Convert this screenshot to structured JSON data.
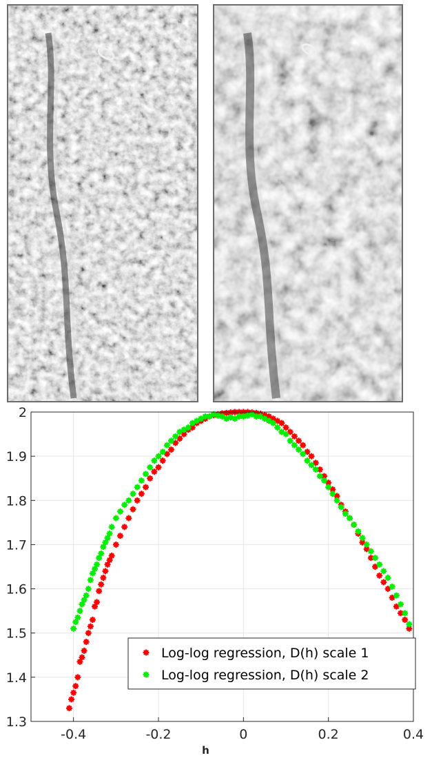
{
  "images": [
    {
      "label": "",
      "texture": "fine"
    },
    {
      "label": "",
      "texture": "coarse"
    }
  ],
  "colors": {
    "series1": "#ff0000",
    "series2": "#00ee00",
    "axis": "#262626",
    "grid": "#e6e6e6"
  },
  "chart_data": {
    "type": "scatter",
    "title": "",
    "xlabel": "h",
    "ylabel": "",
    "xlim": [
      -0.5,
      0.4
    ],
    "ylim": [
      1.3,
      2.0
    ],
    "xticks": [
      "-0.4",
      "-0.2",
      "0",
      "0.2",
      "0.4"
    ],
    "yticks": [
      "1.3",
      "1.4",
      "1.5",
      "1.6",
      "1.7",
      "1.8",
      "1.9",
      "2"
    ],
    "grid": true,
    "legend_position": "bottom-right",
    "series": [
      {
        "name": "Log-log regression, D(h) scale 1",
        "color": "#ff0000",
        "x": [
          -0.41,
          -0.405,
          -0.4,
          -0.395,
          -0.39,
          -0.385,
          -0.38,
          -0.375,
          -0.37,
          -0.365,
          -0.36,
          -0.355,
          -0.35,
          -0.345,
          -0.34,
          -0.335,
          -0.33,
          -0.325,
          -0.32,
          -0.315,
          -0.31,
          -0.3,
          -0.29,
          -0.28,
          -0.27,
          -0.26,
          -0.25,
          -0.24,
          -0.23,
          -0.22,
          -0.21,
          -0.2,
          -0.19,
          -0.18,
          -0.17,
          -0.16,
          -0.15,
          -0.14,
          -0.13,
          -0.12,
          -0.11,
          -0.1,
          -0.09,
          -0.08,
          -0.07,
          -0.06,
          -0.05,
          -0.04,
          -0.03,
          -0.02,
          -0.01,
          0,
          0.01,
          0.02,
          0.03,
          0.04,
          0.05,
          0.06,
          0.07,
          0.08,
          0.09,
          0.1,
          0.11,
          0.12,
          0.13,
          0.14,
          0.15,
          0.16,
          0.17,
          0.18,
          0.19,
          0.2,
          0.21,
          0.22,
          0.23,
          0.24,
          0.25,
          0.26,
          0.27,
          0.28,
          0.29,
          0.3,
          0.31,
          0.32,
          0.33,
          0.34,
          0.35,
          0.36,
          0.37,
          0.38,
          0.39
        ],
        "y": [
          1.33,
          1.35,
          1.365,
          1.38,
          1.4,
          1.435,
          1.445,
          1.46,
          1.48,
          1.5,
          1.515,
          1.53,
          1.56,
          1.57,
          1.595,
          1.61,
          1.625,
          1.64,
          1.655,
          1.665,
          1.675,
          1.7,
          1.72,
          1.74,
          1.76,
          1.78,
          1.8,
          1.815,
          1.83,
          1.85,
          1.865,
          1.875,
          1.89,
          1.905,
          1.915,
          1.93,
          1.94,
          1.95,
          1.96,
          1.965,
          1.975,
          1.98,
          1.985,
          1.99,
          1.993,
          1.995,
          1.997,
          1.998,
          1.999,
          2.0,
          2.0,
          2.0,
          2.0,
          1.999,
          1.998,
          1.996,
          1.993,
          1.99,
          1.985,
          1.98,
          1.975,
          1.965,
          1.955,
          1.945,
          1.935,
          1.925,
          1.91,
          1.9,
          1.885,
          1.87,
          1.855,
          1.84,
          1.825,
          1.81,
          1.79,
          1.775,
          1.76,
          1.745,
          1.725,
          1.705,
          1.69,
          1.67,
          1.65,
          1.63,
          1.615,
          1.6,
          1.58,
          1.56,
          1.545,
          1.53,
          1.51
        ]
      },
      {
        "name": "Log-log regression, D(h) scale 2",
        "color": "#00ee00",
        "x": [
          -0.4,
          -0.395,
          -0.39,
          -0.385,
          -0.38,
          -0.375,
          -0.37,
          -0.365,
          -0.36,
          -0.355,
          -0.35,
          -0.345,
          -0.34,
          -0.335,
          -0.33,
          -0.325,
          -0.32,
          -0.315,
          -0.31,
          -0.3,
          -0.29,
          -0.28,
          -0.27,
          -0.26,
          -0.25,
          -0.24,
          -0.23,
          -0.22,
          -0.21,
          -0.2,
          -0.19,
          -0.18,
          -0.17,
          -0.16,
          -0.15,
          -0.14,
          -0.13,
          -0.12,
          -0.11,
          -0.1,
          -0.09,
          -0.08,
          -0.07,
          -0.06,
          -0.05,
          -0.04,
          -0.03,
          -0.02,
          -0.01,
          0,
          0.01,
          0.02,
          0.03,
          0.04,
          0.05,
          0.06,
          0.07,
          0.08,
          0.09,
          0.1,
          0.11,
          0.12,
          0.13,
          0.14,
          0.15,
          0.16,
          0.17,
          0.18,
          0.19,
          0.2,
          0.21,
          0.22,
          0.23,
          0.24,
          0.25,
          0.26,
          0.27,
          0.28,
          0.29,
          0.3,
          0.31,
          0.32,
          0.33,
          0.34,
          0.35,
          0.36,
          0.37,
          0.38,
          0.39
        ],
        "y": [
          1.51,
          1.525,
          1.535,
          1.55,
          1.565,
          1.575,
          1.585,
          1.6,
          1.62,
          1.635,
          1.645,
          1.655,
          1.67,
          1.68,
          1.695,
          1.705,
          1.715,
          1.725,
          1.74,
          1.76,
          1.775,
          1.79,
          1.8,
          1.815,
          1.83,
          1.845,
          1.86,
          1.875,
          1.89,
          1.9,
          1.91,
          1.925,
          1.935,
          1.945,
          1.955,
          1.96,
          1.965,
          1.975,
          1.98,
          1.985,
          1.99,
          1.99,
          1.995,
          1.992,
          1.99,
          1.985,
          1.988,
          1.985,
          1.99,
          1.99,
          1.992,
          1.995,
          1.99,
          1.99,
          1.985,
          1.98,
          1.975,
          1.965,
          1.955,
          1.95,
          1.935,
          1.925,
          1.915,
          1.905,
          1.89,
          1.88,
          1.87,
          1.855,
          1.845,
          1.83,
          1.815,
          1.8,
          1.785,
          1.77,
          1.76,
          1.745,
          1.73,
          1.715,
          1.7,
          1.685,
          1.67,
          1.655,
          1.64,
          1.625,
          1.605,
          1.585,
          1.565,
          1.545,
          1.52
        ]
      }
    ]
  }
}
